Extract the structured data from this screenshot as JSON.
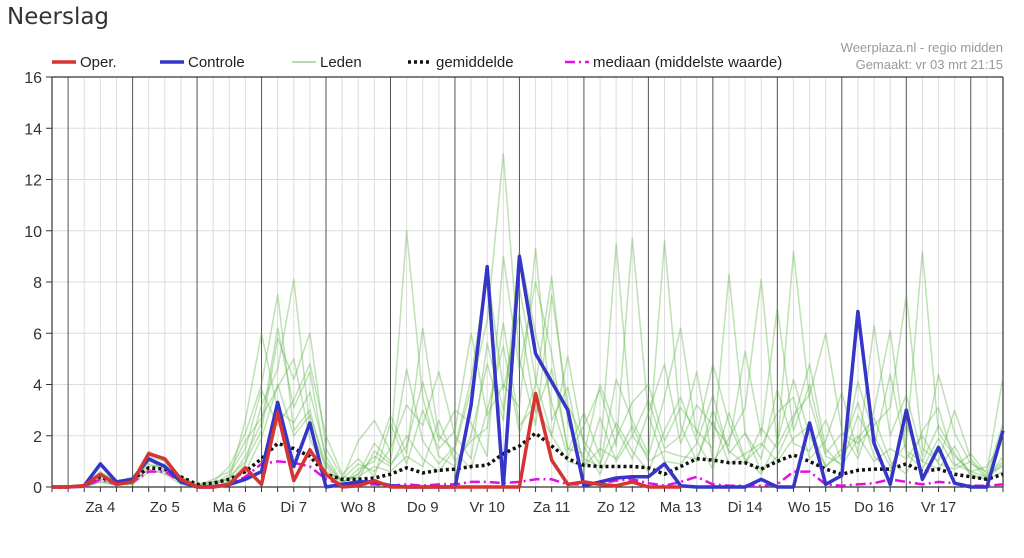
{
  "header": {
    "title": "Neerslag"
  },
  "credits": {
    "line1": "Weerplaza.nl - regio midden",
    "line2": "Gemaakt: vr 03 mrt 21:15"
  },
  "colors": {
    "oper": "#d63333",
    "controle": "#3535c8",
    "leden": "#5cb345",
    "gemiddelde": "#111111",
    "mediaan": "#e010e0"
  },
  "chart_data": {
    "type": "line",
    "title": "Neerslag",
    "ylim": [
      0,
      16
    ],
    "yticks": [
      0,
      2,
      4,
      6,
      8,
      10,
      12,
      14,
      16
    ],
    "grid": true,
    "legend_position": "top",
    "legend": [
      {
        "key": "oper",
        "label": "Oper.",
        "style": "solid-thick"
      },
      {
        "key": "controle",
        "label": "Controle",
        "style": "solid-thick"
      },
      {
        "key": "leden",
        "label": "Leden",
        "style": "solid-thin"
      },
      {
        "key": "gemiddelde",
        "label": "gemiddelde",
        "style": "dotted"
      },
      {
        "key": "mediaan",
        "label": "mediaan (middelste waarde)",
        "style": "dash-dot"
      }
    ],
    "day_labels": [
      {
        "label": "Za 4",
        "at": "Za 4 12:00"
      },
      {
        "label": "Zo 5",
        "at": "Zo 5 12:00"
      },
      {
        "label": "Ma 6",
        "at": "Ma 6 12:00"
      },
      {
        "label": "Di 7",
        "at": "Di 7 12:00"
      },
      {
        "label": "Wo 8",
        "at": "Wo 8 12:00"
      },
      {
        "label": "Do 9",
        "at": "Do 9 12:00"
      },
      {
        "label": "Vr 10",
        "at": "Vr 10 12:00"
      },
      {
        "label": "Za 11",
        "at": "Za 11 12:00"
      },
      {
        "label": "Zo 12",
        "at": "Zo 12 12:00"
      },
      {
        "label": "Ma 13",
        "at": "Ma 13 12:00"
      },
      {
        "label": "Di 14",
        "at": "Di 14 12:00"
      },
      {
        "label": "Wo 15",
        "at": "Wo 15 12:00"
      },
      {
        "label": "Do 16",
        "at": "Do 16 12:00"
      },
      {
        "label": "Vr 17",
        "at": "Vr 17 12:00"
      }
    ],
    "x": [
      "Vr 3 18:00",
      "Za 4 00:00",
      "Za 4 06:00",
      "Za 4 12:00",
      "Za 4 18:00",
      "Zo 5 00:00",
      "Zo 5 06:00",
      "Zo 5 12:00",
      "Zo 5 18:00",
      "Ma 6 00:00",
      "Ma 6 06:00",
      "Ma 6 12:00",
      "Ma 6 18:00",
      "Di 7 00:00",
      "Di 7 06:00",
      "Di 7 12:00",
      "Di 7 18:00",
      "Wo 8 00:00",
      "Wo 8 06:00",
      "Wo 8 12:00",
      "Wo 8 18:00",
      "Do 9 00:00",
      "Do 9 06:00",
      "Do 9 12:00",
      "Do 9 18:00",
      "Vr 10 00:00",
      "Vr 10 06:00",
      "Vr 10 12:00",
      "Vr 10 18:00",
      "Za 11 00:00",
      "Za 11 06:00",
      "Za 11 12:00",
      "Za 11 18:00",
      "Zo 12 00:00",
      "Zo 12 06:00",
      "Zo 12 12:00",
      "Zo 12 18:00",
      "Ma 13 00:00",
      "Ma 13 06:00",
      "Ma 13 12:00",
      "Ma 13 18:00",
      "Di 14 00:00",
      "Di 14 06:00",
      "Di 14 12:00",
      "Di 14 18:00",
      "Wo 15 00:00",
      "Wo 15 06:00",
      "Wo 15 12:00",
      "Wo 15 18:00",
      "Do 16 00:00",
      "Do 16 06:00",
      "Do 16 12:00",
      "Do 16 18:00",
      "Vr 17 00:00",
      "Vr 17 06:00",
      "Vr 17 12:00",
      "Vr 17 18:00",
      "Za 18 00:00",
      "Za 18 06:00",
      "Za 18 12:00"
    ],
    "series": [
      {
        "name": "Leden",
        "key": "leden",
        "members": [
          [
            0,
            0,
            0,
            0.4,
            0.1,
            0.2,
            0.9,
            0.7,
            0.2,
            0,
            0.1,
            0.3,
            1.2,
            2.5,
            6.2,
            3.1,
            4.5,
            1.0,
            0.2,
            0.5,
            1.2,
            0.8,
            2.0,
            1.1,
            0.6,
            1.5,
            3.8,
            6.5,
            13.0,
            5.0,
            2.4,
            7.5,
            3.2,
            1.8,
            0.9,
            2.5,
            1.4,
            0.6,
            2.2,
            3.5,
            1.8,
            0.7,
            2.9,
            1.1,
            0.5,
            1.8,
            4.2,
            2.0,
            0.8,
            1.5,
            3.3,
            1.2,
            0.6,
            2.4,
            1.0,
            0.7,
            1.6,
            0.4,
            0.3,
            1.2
          ],
          [
            0,
            0,
            0.1,
            0.6,
            0.2,
            0.3,
            1.4,
            1.0,
            0.4,
            0.1,
            0.2,
            0.8,
            2.1,
            4.0,
            7.5,
            2.2,
            3.0,
            0.6,
            0.3,
            1.8,
            2.6,
            1.4,
            10.0,
            3.5,
            1.2,
            0.8,
            2.0,
            4.8,
            2.6,
            9.2,
            6.0,
            3.3,
            1.2,
            2.4,
            3.8,
            1.6,
            9.7,
            2.8,
            1.0,
            0.9,
            1.7,
            3.6,
            1.3,
            2.1,
            0.6,
            1.2,
            2.6,
            4.8,
            1.5,
            0.8,
            1.9,
            2.7,
            1.0,
            0.5,
            2.2,
            3.1,
            0.9,
            0.6,
            0.4,
            1.0
          ],
          [
            0,
            0,
            0,
            0.3,
            0.1,
            0.1,
            0.8,
            0.9,
            0.3,
            0,
            0,
            0.2,
            0.9,
            3.2,
            4.6,
            8.1,
            2.3,
            0.8,
            0.1,
            0.7,
            1.0,
            2.8,
            1.3,
            6.2,
            2.0,
            1.4,
            0.7,
            3.0,
            5.5,
            2.1,
            4.0,
            8.2,
            2.5,
            1.1,
            0.8,
            4.2,
            2.6,
            1.3,
            9.6,
            2.4,
            1.0,
            3.0,
            1.4,
            0.9,
            2.3,
            1.5,
            9.2,
            3.4,
            1.2,
            0.9,
            2.8,
            1.6,
            4.4,
            1.3,
            0.7,
            1.9,
            0.8,
            1.3,
            0.5,
            0.8
          ],
          [
            0,
            0,
            0.05,
            0.5,
            0.2,
            0.4,
            1.1,
            0.6,
            0.2,
            0.05,
            0.3,
            0.6,
            1.8,
            2.7,
            3.9,
            5.0,
            1.9,
            0.5,
            0.3,
            0.9,
            0.6,
            1.5,
            3.2,
            2.4,
            4.5,
            2.0,
            1.1,
            5.6,
            3.0,
            7.8,
            4.2,
            2.0,
            5.1,
            1.6,
            0.5,
            1.9,
            3.3,
            4.0,
            1.8,
            3.1,
            2.2,
            1.5,
            8.3,
            2.1,
            1.1,
            3.8,
            1.7,
            1.4,
            2.6,
            1.0,
            4.1,
            2.0,
            0.8,
            1.7,
            9.2,
            2.1,
            1.2,
            0.6,
            0.8,
            1.8
          ],
          [
            0,
            0,
            0,
            0.2,
            0.05,
            0.2,
            0.7,
            0.5,
            0.1,
            0,
            0.05,
            0.4,
            1.0,
            2.2,
            5.8,
            4.2,
            6.0,
            1.5,
            0.4,
            0.3,
            1.4,
            0.9,
            1.6,
            4.1,
            1.8,
            3.0,
            2.5,
            1.2,
            9.0,
            4.6,
            8.0,
            5.2,
            1.4,
            2.9,
            1.2,
            9.5,
            2.0,
            3.4,
            1.5,
            2.0,
            4.5,
            1.0,
            1.9,
            3.1,
            8.1,
            1.6,
            2.8,
            3.6,
            6.0,
            2.2,
            1.1,
            3.0,
            6.1,
            1.4,
            1.0,
            2.4,
            1.3,
            0.5,
            0.3,
            0.9
          ],
          [
            0,
            0,
            0,
            0.3,
            0.1,
            0.2,
            1.0,
            0.8,
            0.3,
            0.1,
            0.1,
            0.5,
            1.5,
            3.8,
            2.4,
            3.4,
            4.8,
            2.0,
            0.5,
            1.1,
            0.4,
            2.5,
            0.9,
            3.0,
            1.5,
            2.2,
            6.0,
            2.8,
            4.0,
            3.1,
            9.3,
            2.6,
            3.9,
            0.7,
            2.7,
            1.0,
            2.0,
            1.2,
            3.5,
            6.2,
            2.0,
            4.8,
            2.5,
            1.0,
            1.6,
            2.9,
            3.5,
            1.1,
            1.8,
            3.7,
            1.3,
            6.3,
            2.0,
            3.6,
            1.2,
            4.4,
            2.1,
            0.9,
            0.6,
            4.3
          ],
          [
            0,
            0,
            0,
            0.5,
            0.15,
            0.3,
            1.2,
            1.0,
            0.4,
            0.05,
            0.2,
            0.3,
            2.6,
            6.0,
            3.0,
            2.5,
            3.7,
            1.2,
            0.2,
            0.5,
            1.7,
            1.0,
            4.6,
            1.8,
            0.9,
            1.6,
            4.2,
            8.5,
            3.8,
            6.8,
            2.9,
            4.6,
            1.5,
            1.3,
            4.0,
            2.3,
            1.1,
            2.9,
            4.8,
            1.7,
            3.2,
            2.4,
            1.6,
            5.3,
            2.0,
            7.0,
            2.2,
            4.0,
            1.3,
            2.1,
            1.7,
            2.4,
            3.1,
            7.5,
            1.5,
            1.0,
            3.0,
            1.1,
            0.4,
            2.5
          ],
          [
            0,
            0,
            0,
            0.2,
            0.1,
            0.1,
            0.6,
            0.6,
            0.2,
            0,
            0,
            0.2,
            0.6,
            1.9,
            4.0,
            2.0,
            2.8,
            0.9,
            0.2,
            0.4,
            0.8,
            0.6,
            1.2,
            0.8,
            2.6,
            1.0,
            1.8,
            2.3,
            6.4,
            2.4,
            3.2,
            2.0,
            1.0,
            0.8,
            1.5,
            1.1,
            2.4,
            1.0,
            1.4,
            1.2,
            1.1,
            2.6,
            0.9,
            1.3,
            1.7,
            1.0,
            1.9,
            2.4,
            0.8,
            1.3,
            2.0,
            1.0,
            1.5,
            1.1,
            2.0,
            0.9,
            0.7,
            1.0,
            0.3,
            0.6
          ]
        ]
      },
      {
        "name": "gemiddelde",
        "key": "gemiddelde",
        "values": [
          0,
          0,
          0.05,
          0.4,
          0.15,
          0.3,
          0.75,
          0.7,
          0.4,
          0.1,
          0.15,
          0.3,
          0.6,
          1.1,
          1.7,
          1.5,
          1.2,
          0.5,
          0.3,
          0.3,
          0.35,
          0.5,
          0.75,
          0.55,
          0.65,
          0.7,
          0.8,
          0.85,
          1.3,
          1.6,
          2.1,
          1.6,
          1.1,
          0.85,
          0.8,
          0.8,
          0.8,
          0.75,
          0.5,
          0.8,
          1.1,
          1.05,
          0.95,
          0.95,
          0.7,
          1.0,
          1.25,
          1.0,
          0.7,
          0.5,
          0.65,
          0.7,
          0.7,
          0.9,
          0.6,
          0.7,
          0.5,
          0.4,
          0.3,
          0.5
        ]
      },
      {
        "name": "mediaan (middelste waarde)",
        "key": "mediaan",
        "values": [
          0,
          0,
          0,
          0.3,
          0.1,
          0.2,
          0.6,
          0.6,
          0.2,
          0,
          0.05,
          0.1,
          0.4,
          0.9,
          1.0,
          0.95,
          0.8,
          0.3,
          0.1,
          0.1,
          0.1,
          0.05,
          0.1,
          0.05,
          0.1,
          0.1,
          0.2,
          0.2,
          0.15,
          0.2,
          0.3,
          0.3,
          0.1,
          0.1,
          0.15,
          0.25,
          0.3,
          0.15,
          0.05,
          0.2,
          0.4,
          0.1,
          0.05,
          0.05,
          0.05,
          0.1,
          0.6,
          0.6,
          0.1,
          0.05,
          0.1,
          0.15,
          0.3,
          0.2,
          0.1,
          0.2,
          0.15,
          0.05,
          0.05,
          0.1
        ]
      },
      {
        "name": "Controle",
        "key": "controle",
        "values": [
          0,
          0,
          0.05,
          0.9,
          0.2,
          0.3,
          1.1,
          0.8,
          0.2,
          0,
          0,
          0.1,
          0.3,
          0.6,
          3.3,
          0.8,
          2.5,
          0,
          0.1,
          0.2,
          0.2,
          0.05,
          0,
          0,
          0,
          0,
          3.2,
          8.6,
          0,
          9.0,
          5.2,
          4.1,
          3.0,
          0.05,
          0.2,
          0.35,
          0.4,
          0.4,
          0.9,
          0.05,
          0,
          0,
          0,
          0,
          0.3,
          0,
          0,
          2.5,
          0.1,
          0.45,
          6.85,
          1.7,
          0.1,
          3.0,
          0.3,
          1.55,
          0.15,
          0,
          0,
          2.2
        ]
      },
      {
        "name": "Oper.",
        "key": "oper",
        "values": [
          0,
          0,
          0.05,
          0.5,
          0.1,
          0.2,
          1.3,
          1.1,
          0.3,
          0,
          0,
          0.1,
          0.75,
          0.1,
          2.9,
          0.25,
          1.45,
          0.5,
          0,
          0.05,
          0.25,
          0,
          0,
          0,
          0,
          0,
          0,
          0,
          0,
          0,
          3.65,
          1.05,
          0.1,
          0.2,
          0.1,
          0.05,
          0.2,
          0,
          0,
          0,
          null,
          null,
          null,
          null,
          null,
          null,
          null,
          null,
          null,
          null,
          null,
          null,
          null,
          null,
          null,
          null,
          null,
          null,
          null,
          null
        ]
      }
    ]
  }
}
